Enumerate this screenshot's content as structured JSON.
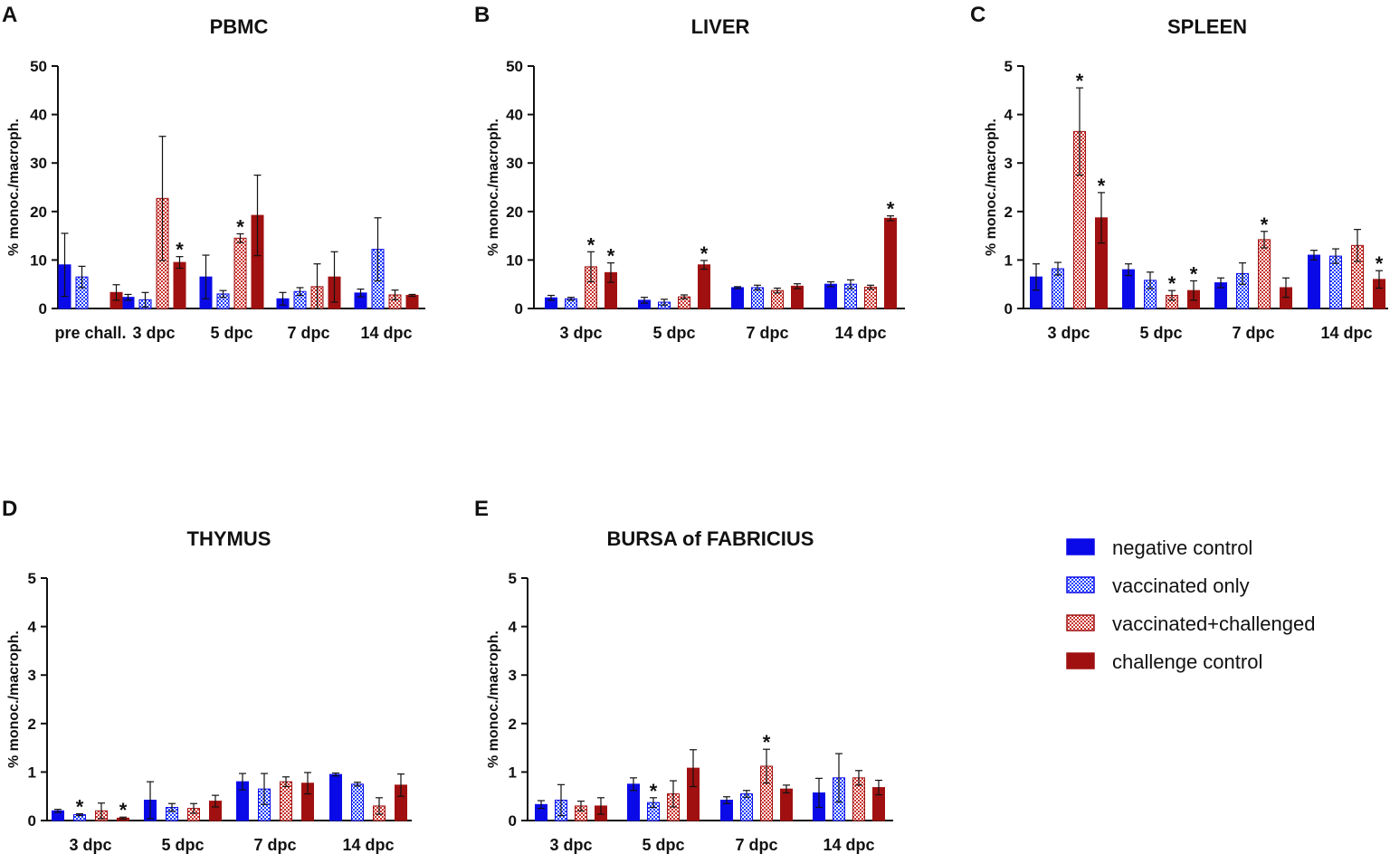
{
  "colors": {
    "negative_control": "#0a0ae8",
    "vaccinated_only": "#1f3fff",
    "vaccinated_challenged": "#c8332c",
    "challenge_control": "#a01010"
  },
  "legend": {
    "items": [
      {
        "key": "negative_control",
        "label": "negative control",
        "pattern": "solid-blue"
      },
      {
        "key": "vaccinated_only",
        "label": "vaccinated only",
        "pattern": "checker-blue"
      },
      {
        "key": "vaccinated_challenged",
        "label": "vaccinated+challenged",
        "pattern": "checker-red"
      },
      {
        "key": "challenge_control",
        "label": "challenge control",
        "pattern": "solid-red"
      }
    ]
  },
  "chart_data": [
    {
      "panel": "A",
      "title": "PBMC",
      "type": "bar",
      "ylabel": "% monoc./macroph.",
      "ylim": [
        0,
        50
      ],
      "yticks": [
        0,
        10,
        20,
        30,
        40,
        50
      ],
      "categories": [
        "pre chall.",
        "3 dpc",
        "5 dpc",
        "7 dpc",
        "14 dpc"
      ],
      "series": [
        {
          "name": "negative control",
          "values": [
            9.0,
            2.3,
            6.5,
            2.0,
            3.2
          ],
          "errors": [
            6.5,
            0.6,
            4.5,
            1.3,
            0.8
          ],
          "stars": []
        },
        {
          "name": "vaccinated only",
          "values": [
            6.5,
            1.8,
            3.0,
            3.5,
            12.2
          ],
          "errors": [
            2.2,
            1.5,
            0.7,
            0.8,
            6.5
          ],
          "stars": []
        },
        {
          "name": "vaccinated+challenged",
          "values": [
            0,
            22.7,
            14.5,
            4.5,
            2.8
          ],
          "errors": [
            0,
            12.8,
            0.9,
            4.7,
            1.0
          ],
          "stars": [
            2
          ]
        },
        {
          "name": "challenge control",
          "values": [
            3.3,
            9.5,
            19.2,
            6.5,
            2.7
          ],
          "errors": [
            1.6,
            1.2,
            8.3,
            5.2,
            0.2
          ],
          "stars": [
            1
          ]
        }
      ]
    },
    {
      "panel": "B",
      "title": "LIVER",
      "type": "bar",
      "ylabel": "% monoc./macroph.",
      "ylim": [
        0,
        50
      ],
      "yticks": [
        0,
        10,
        20,
        30,
        40,
        50
      ],
      "categories": [
        "3 dpc",
        "5 dpc",
        "7 dpc",
        "14 dpc"
      ],
      "series": [
        {
          "name": "negative control",
          "values": [
            2.2,
            1.7,
            4.3,
            5.0
          ],
          "errors": [
            0.5,
            0.6,
            0.2,
            0.5
          ],
          "stars": []
        },
        {
          "name": "vaccinated only",
          "values": [
            2.0,
            1.3,
            4.3,
            5.0
          ],
          "errors": [
            0.3,
            0.6,
            0.5,
            0.9
          ],
          "stars": []
        },
        {
          "name": "vaccinated+challenged",
          "values": [
            8.6,
            2.4,
            3.7,
            4.4
          ],
          "errors": [
            3.1,
            0.4,
            0.5,
            0.4
          ],
          "stars": [
            0
          ]
        },
        {
          "name": "challenge control",
          "values": [
            7.4,
            9.0,
            4.6,
            18.6
          ],
          "errors": [
            2.0,
            0.9,
            0.5,
            0.5
          ],
          "stars": [
            0,
            1,
            3
          ]
        }
      ]
    },
    {
      "panel": "C",
      "title": "SPLEEN",
      "type": "bar",
      "ylabel": "% monoc./macroph.",
      "ylim": [
        0,
        5
      ],
      "yticks": [
        0,
        1,
        2,
        3,
        4,
        5
      ],
      "categories": [
        "3 dpc",
        "5 dpc",
        "7 dpc",
        "14 dpc"
      ],
      "series": [
        {
          "name": "negative control",
          "values": [
            0.65,
            0.8,
            0.53,
            1.1
          ],
          "errors": [
            0.27,
            0.12,
            0.1,
            0.1
          ],
          "stars": []
        },
        {
          "name": "vaccinated only",
          "values": [
            0.82,
            0.58,
            0.72,
            1.08
          ],
          "errors": [
            0.13,
            0.17,
            0.22,
            0.15
          ],
          "stars": []
        },
        {
          "name": "vaccinated+challenged",
          "values": [
            3.65,
            0.27,
            1.42,
            1.3
          ],
          "errors": [
            0.9,
            0.1,
            0.17,
            0.33
          ],
          "stars": [
            0,
            1,
            2
          ]
        },
        {
          "name": "challenge control",
          "values": [
            1.87,
            0.37,
            0.43,
            0.6
          ],
          "errors": [
            0.52,
            0.2,
            0.2,
            0.18
          ],
          "stars": [
            0,
            1,
            3
          ]
        }
      ]
    },
    {
      "panel": "D",
      "title": "THYMUS",
      "type": "bar",
      "ylabel": "% monoc./macroph.",
      "ylim": [
        0,
        5
      ],
      "yticks": [
        0,
        1,
        2,
        3,
        4,
        5
      ],
      "categories": [
        "3 dpc",
        "5 dpc",
        "7 dpc",
        "14 dpc"
      ],
      "series": [
        {
          "name": "negative control",
          "values": [
            0.2,
            0.42,
            0.8,
            0.95
          ],
          "errors": [
            0.03,
            0.38,
            0.17,
            0.03
          ],
          "stars": []
        },
        {
          "name": "vaccinated only",
          "values": [
            0.12,
            0.27,
            0.65,
            0.75
          ],
          "errors": [
            0.02,
            0.08,
            0.32,
            0.04
          ],
          "stars": [
            0
          ]
        },
        {
          "name": "vaccinated+challenged",
          "values": [
            0.2,
            0.25,
            0.8,
            0.3
          ],
          "errors": [
            0.16,
            0.1,
            0.1,
            0.17
          ],
          "stars": []
        },
        {
          "name": "challenge control",
          "values": [
            0.05,
            0.4,
            0.77,
            0.73
          ],
          "errors": [
            0.02,
            0.12,
            0.22,
            0.23
          ],
          "stars": [
            0
          ]
        }
      ]
    },
    {
      "panel": "E",
      "title": "BURSA of FABRICIUS",
      "type": "bar",
      "ylabel": "% monoc./macroph.",
      "ylim": [
        0,
        5
      ],
      "yticks": [
        0,
        1,
        2,
        3,
        4,
        5
      ],
      "categories": [
        "3 dpc",
        "5 dpc",
        "7 dpc",
        "14 dpc"
      ],
      "series": [
        {
          "name": "negative control",
          "values": [
            0.33,
            0.75,
            0.42,
            0.57
          ],
          "errors": [
            0.08,
            0.13,
            0.07,
            0.3
          ],
          "stars": []
        },
        {
          "name": "vaccinated only",
          "values": [
            0.42,
            0.37,
            0.55,
            0.88
          ],
          "errors": [
            0.32,
            0.1,
            0.07,
            0.5
          ],
          "stars": [
            1
          ]
        },
        {
          "name": "vaccinated+challenged",
          "values": [
            0.3,
            0.55,
            1.12,
            0.88
          ],
          "errors": [
            0.1,
            0.27,
            0.35,
            0.15
          ],
          "stars": [
            2
          ]
        },
        {
          "name": "challenge control",
          "values": [
            0.3,
            1.08,
            0.65,
            0.68
          ],
          "errors": [
            0.17,
            0.38,
            0.08,
            0.15
          ],
          "stars": []
        }
      ]
    }
  ]
}
